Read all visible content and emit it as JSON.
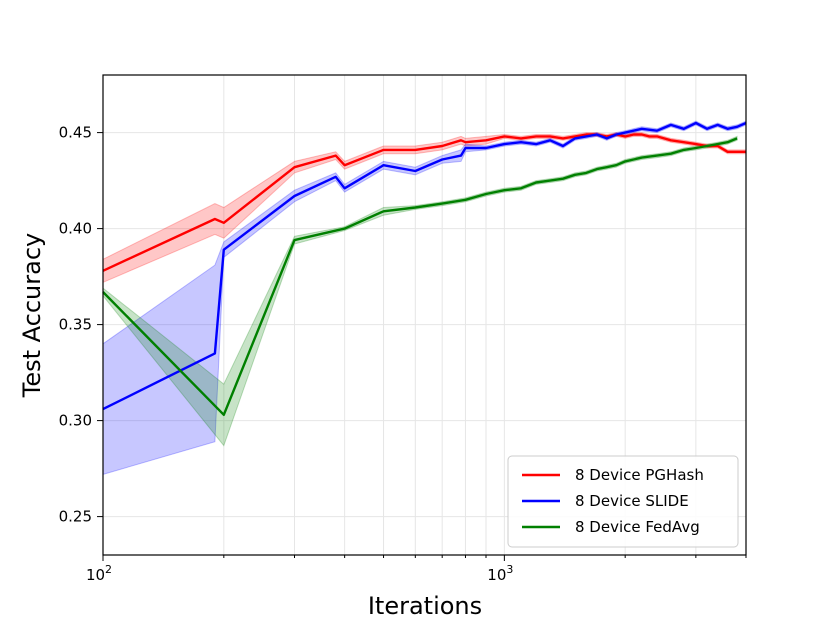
{
  "chart_data": {
    "type": "line",
    "xscale": "log",
    "xlim": [
      100,
      4000
    ],
    "ylim": [
      0.23,
      0.48
    ],
    "grid": true,
    "legend_position": "lower-right",
    "xlabel": "Iterations",
    "ylabel": "Test Accuracy",
    "x_ticks": [
      {
        "value": 100,
        "base": "10",
        "exp": "2"
      },
      {
        "value": 1000,
        "base": "10",
        "exp": "3"
      }
    ],
    "y_ticks": [
      {
        "value": 0.25,
        "label": "0.25"
      },
      {
        "value": 0.3,
        "label": "0.30"
      },
      {
        "value": 0.35,
        "label": "0.35"
      },
      {
        "value": 0.4,
        "label": "0.40"
      },
      {
        "value": 0.45,
        "label": "0.45"
      }
    ],
    "series": [
      {
        "name": "8 Device PGHash",
        "color": "#ff0000",
        "x": [
          100,
          190,
          200,
          300,
          380,
          400,
          500,
          600,
          700,
          780,
          800,
          900,
          1000,
          1100,
          1200,
          1300,
          1400,
          1500,
          1600,
          1700,
          1800,
          1900,
          2000,
          2100,
          2200,
          2300,
          2400,
          2600,
          2800,
          3000,
          3200,
          3400,
          3600,
          3800,
          4000
        ],
        "y": [
          0.378,
          0.405,
          0.403,
          0.432,
          0.438,
          0.433,
          0.441,
          0.441,
          0.443,
          0.446,
          0.445,
          0.446,
          0.448,
          0.447,
          0.448,
          0.448,
          0.447,
          0.448,
          0.449,
          0.449,
          0.448,
          0.449,
          0.448,
          0.449,
          0.449,
          0.448,
          0.448,
          0.446,
          0.445,
          0.444,
          0.443,
          0.443,
          0.44,
          0.44,
          0.44
        ],
        "band": [
          0.006,
          0.008,
          0.008,
          0.003,
          0.002,
          0.002,
          0.002,
          0.002,
          0.002,
          0.002,
          0.002,
          0.002,
          0.001,
          0.001,
          0.001,
          0.001,
          0.001,
          0.001,
          0.001,
          0.001,
          0.001,
          0.001,
          0.001,
          0.001,
          0.001,
          0.001,
          0.001,
          0.001,
          0.001,
          0.001,
          0.001,
          0.001,
          0.001,
          0.001,
          0.001
        ]
      },
      {
        "name": "8 Device SLIDE",
        "color": "#0000ff",
        "x": [
          100,
          190,
          200,
          300,
          380,
          400,
          500,
          600,
          700,
          780,
          800,
          900,
          1000,
          1100,
          1200,
          1300,
          1400,
          1500,
          1600,
          1700,
          1800,
          1900,
          2000,
          2200,
          2400,
          2600,
          2800,
          3000,
          3200,
          3400,
          3600,
          3800,
          4000
        ],
        "y": [
          0.306,
          0.335,
          0.389,
          0.417,
          0.427,
          0.421,
          0.433,
          0.43,
          0.436,
          0.438,
          0.442,
          0.442,
          0.444,
          0.445,
          0.444,
          0.446,
          0.443,
          0.447,
          0.448,
          0.449,
          0.447,
          0.449,
          0.45,
          0.452,
          0.451,
          0.454,
          0.452,
          0.455,
          0.452,
          0.454,
          0.452,
          0.453,
          0.455
        ],
        "band": [
          0.034,
          0.046,
          0.004,
          0.003,
          0.002,
          0.002,
          0.002,
          0.002,
          0.002,
          0.003,
          0.002,
          0.001,
          0.001,
          0.001,
          0.001,
          0.001,
          0.001,
          0.001,
          0.001,
          0.001,
          0.001,
          0.001,
          0.001,
          0.001,
          0.001,
          0.001,
          0.001,
          0.001,
          0.001,
          0.001,
          0.001,
          0.001,
          0.001
        ]
      },
      {
        "name": "8 Device FedAvg",
        "color": "#008000",
        "x": [
          100,
          200,
          300,
          400,
          500,
          600,
          700,
          800,
          900,
          1000,
          1100,
          1200,
          1300,
          1400,
          1500,
          1600,
          1700,
          1800,
          1900,
          2000,
          2200,
          2400,
          2600,
          2800,
          3000,
          3200,
          3400,
          3600,
          3800
        ],
        "y": [
          0.367,
          0.303,
          0.394,
          0.4,
          0.409,
          0.411,
          0.413,
          0.415,
          0.418,
          0.42,
          0.421,
          0.424,
          0.425,
          0.426,
          0.428,
          0.429,
          0.431,
          0.432,
          0.433,
          0.435,
          0.437,
          0.438,
          0.439,
          0.441,
          0.442,
          0.443,
          0.444,
          0.445,
          0.447
        ],
        "band": [
          0.002,
          0.016,
          0.002,
          0.001,
          0.002,
          0.001,
          0.001,
          0.001,
          0.001,
          0.001,
          0.001,
          0.001,
          0.001,
          0.001,
          0.001,
          0.001,
          0.001,
          0.001,
          0.001,
          0.001,
          0.001,
          0.001,
          0.001,
          0.001,
          0.001,
          0.001,
          0.001,
          0.001,
          0.001
        ]
      }
    ]
  }
}
